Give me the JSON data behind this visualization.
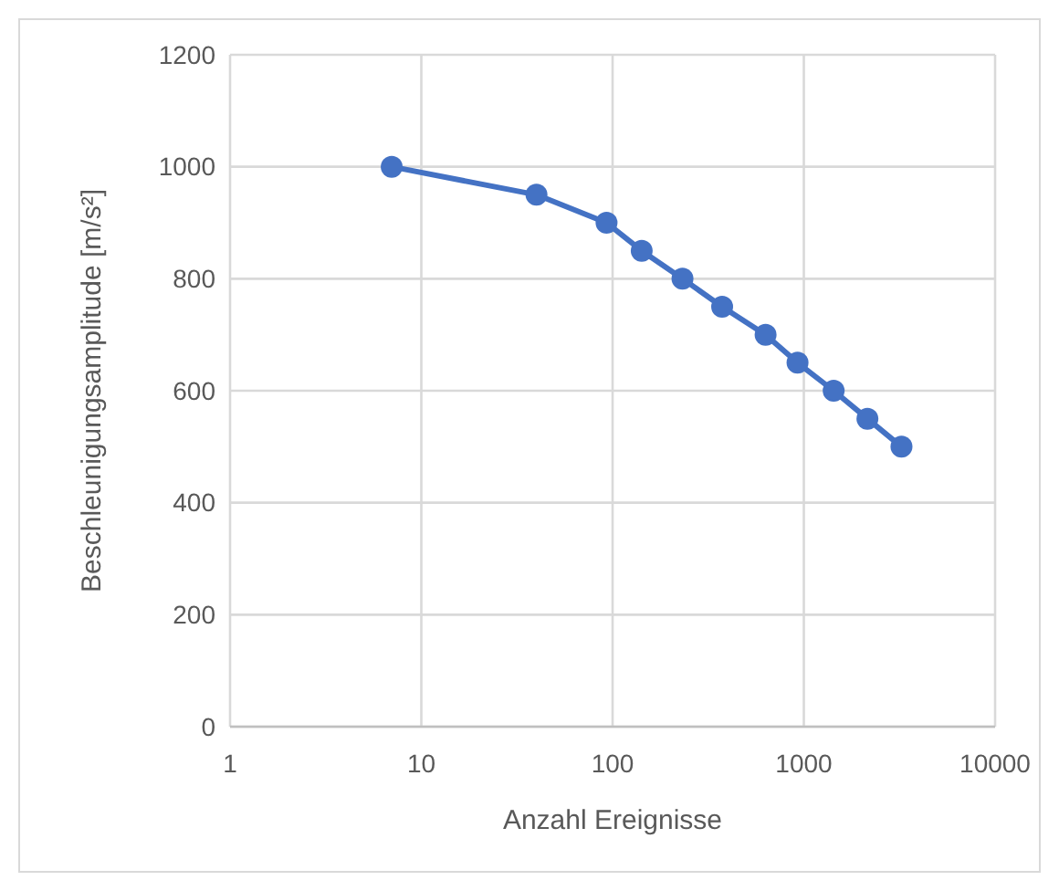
{
  "chart_data": {
    "type": "line",
    "xlabel": "Anzahl Ereignisse",
    "ylabel": "Beschleunigungsamplitude [m/s²]",
    "x": [
      7,
      40,
      93,
      142,
      232,
      374,
      631,
      927,
      1432,
      2150,
      3240
    ],
    "series": [
      {
        "color": "#4472c4",
        "values": [
          1000,
          950,
          900,
          850,
          800,
          750,
          700,
          650,
          600,
          550,
          500
        ]
      }
    ],
    "log": "x",
    "xlim": [
      1,
      10000
    ],
    "xticks": [
      1,
      10,
      100,
      1000,
      10000
    ],
    "ylim": [
      0,
      1200
    ],
    "yticks": [
      0,
      200,
      400,
      600,
      800,
      1000,
      1200
    ],
    "grid": true,
    "marker": "circle",
    "line_style": "solid"
  }
}
